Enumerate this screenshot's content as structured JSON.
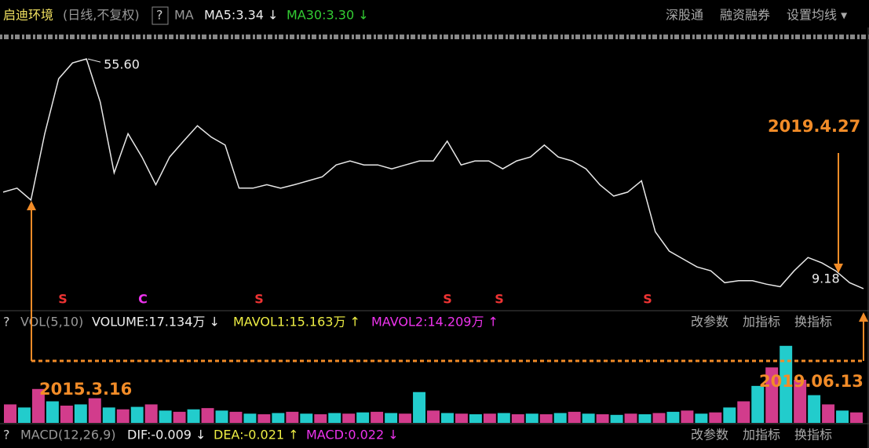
{
  "header": {
    "name": "启迪环境",
    "mode": "(日线,不复权)",
    "help": "?",
    "ma": "MA",
    "ma5": "MA5:3.34 ↓",
    "ma30": "MA30:3.30 ↓",
    "links": [
      "深股通",
      "融资融券",
      "设置均线 ▾"
    ]
  },
  "price_chart": {
    "type": "line",
    "color": "#e8e8e8",
    "ylim": [
      5.7,
      58
    ],
    "values": [
      28.7,
      29.5,
      27.1,
      40.5,
      51.6,
      54.8,
      55.6,
      46.9,
      32.6,
      40.5,
      35.8,
      30.2,
      35.8,
      39.0,
      42.1,
      39.8,
      38.2,
      29.5,
      29.5,
      30.2,
      29.5,
      30.2,
      31.0,
      31.8,
      34.2,
      35.0,
      34.2,
      34.2,
      33.4,
      34.2,
      35.0,
      35.0,
      39.0,
      34.2,
      35.0,
      35.0,
      33.4,
      35.0,
      35.8,
      38.2,
      35.8,
      35.0,
      33.4,
      30.2,
      27.9,
      28.7,
      31.0,
      20.7,
      16.8,
      15.2,
      13.6,
      12.8,
      10.4,
      10.8,
      10.8,
      10.1,
      9.6,
      12.8,
      15.5,
      14.4,
      12.8,
      10.4,
      9.2
    ],
    "high_label": "55.60",
    "low_label": "9.18",
    "markers": [
      "S",
      "C",
      "S",
      "S",
      "S",
      "S"
    ]
  },
  "annotations": {
    "start": "2015.3.16",
    "mid": "2019.4.27",
    "end": "2019.06.13"
  },
  "volume_panel": {
    "help": "?",
    "name": "VOL(5,10)",
    "volume": "VOLUME:17.134万 ↓",
    "mavol1": "MAVOL1:15.163万 ↑",
    "mavol2": "MAVOL2:14.209万 ↑",
    "tools": [
      "改参数",
      "加指标",
      "换指标"
    ],
    "type": "bar",
    "color": "#d23c8c",
    "ylim": [
      0,
      140
    ],
    "values": [
      30,
      25,
      55,
      35,
      28,
      30,
      40,
      25,
      22,
      26,
      30,
      20,
      18,
      22,
      24,
      20,
      18,
      15,
      14,
      16,
      18,
      15,
      14,
      16,
      15,
      17,
      18,
      16,
      15,
      50,
      20,
      16,
      15,
      14,
      15,
      16,
      14,
      15,
      14,
      16,
      18,
      15,
      14,
      13,
      15,
      14,
      16,
      18,
      20,
      15,
      17,
      25,
      35,
      60,
      90,
      125,
      70,
      45,
      30,
      20,
      17
    ]
  },
  "macd_panel": {
    "help": "?",
    "name": "MACD(12,26,9)",
    "dif": "DIF:-0.009 ↓",
    "dea": "DEA:-0.021 ↑",
    "macd": "MACD:0.022 ↓",
    "tools": [
      "改参数",
      "加指标",
      "换指标"
    ]
  }
}
